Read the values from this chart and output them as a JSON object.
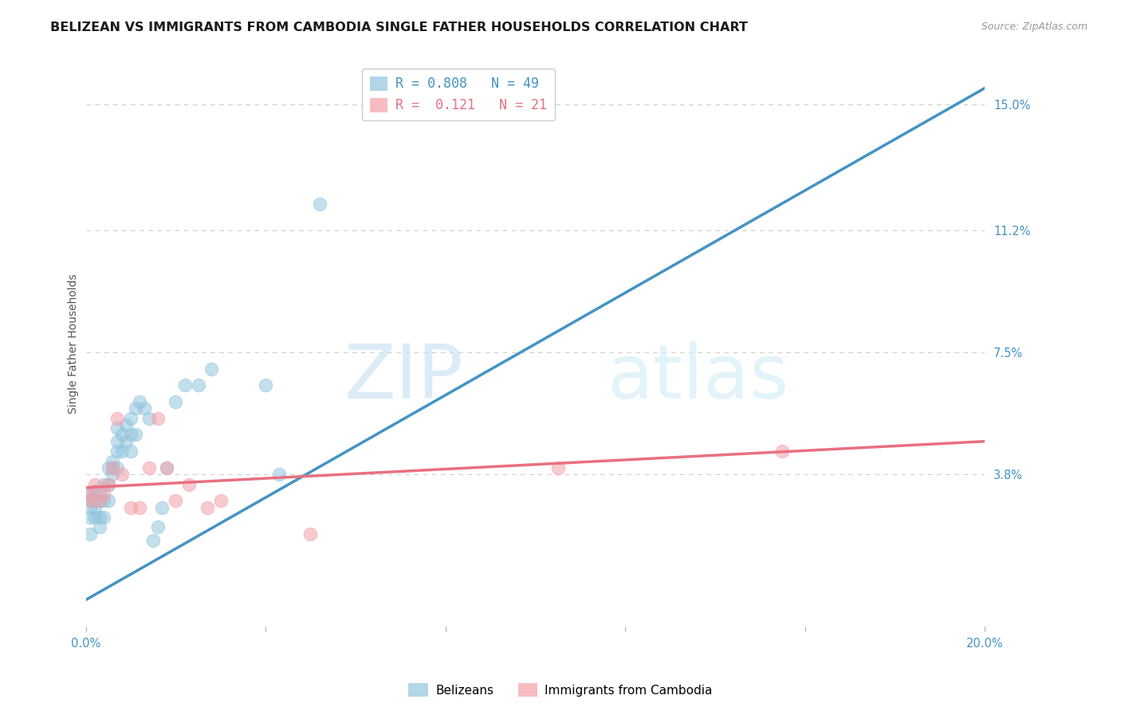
{
  "title": "BELIZEAN VS IMMIGRANTS FROM CAMBODIA SINGLE FATHER HOUSEHOLDS CORRELATION CHART",
  "source": "Source: ZipAtlas.com",
  "ylabel": "Single Father Households",
  "ylabel_right_ticks": [
    "15.0%",
    "11.2%",
    "7.5%",
    "3.8%"
  ],
  "ylabel_right_values": [
    0.15,
    0.112,
    0.075,
    0.038
  ],
  "xlim": [
    0.0,
    0.2
  ],
  "ylim": [
    -0.008,
    0.163
  ],
  "watermark_zip": "ZIP",
  "watermark_atlas": "atlas",
  "legend_blue_r": "0.808",
  "legend_blue_n": "49",
  "legend_pink_r": "0.121",
  "legend_pink_n": "21",
  "blue_color": "#92c5de",
  "pink_color": "#f4a0a8",
  "line_blue": "#4393c3",
  "line_pink": "#e87080",
  "belizeans_label": "Belizeans",
  "cambodia_label": "Immigrants from Cambodia",
  "blue_x": [
    0.001,
    0.001,
    0.001,
    0.001,
    0.001,
    0.002,
    0.002,
    0.002,
    0.002,
    0.003,
    0.003,
    0.003,
    0.003,
    0.004,
    0.004,
    0.004,
    0.005,
    0.005,
    0.005,
    0.006,
    0.006,
    0.006,
    0.007,
    0.007,
    0.007,
    0.007,
    0.008,
    0.008,
    0.009,
    0.009,
    0.01,
    0.01,
    0.01,
    0.011,
    0.011,
    0.012,
    0.013,
    0.014,
    0.015,
    0.016,
    0.017,
    0.018,
    0.02,
    0.022,
    0.025,
    0.028,
    0.04,
    0.043,
    0.052
  ],
  "blue_y": [
    0.02,
    0.025,
    0.028,
    0.03,
    0.032,
    0.025,
    0.028,
    0.03,
    0.033,
    0.022,
    0.025,
    0.03,
    0.032,
    0.025,
    0.03,
    0.035,
    0.03,
    0.035,
    0.04,
    0.038,
    0.04,
    0.042,
    0.04,
    0.045,
    0.048,
    0.052,
    0.045,
    0.05,
    0.048,
    0.053,
    0.045,
    0.05,
    0.055,
    0.05,
    0.058,
    0.06,
    0.058,
    0.055,
    0.018,
    0.022,
    0.028,
    0.04,
    0.06,
    0.065,
    0.065,
    0.07,
    0.065,
    0.038,
    0.12
  ],
  "pink_x": [
    0.001,
    0.001,
    0.002,
    0.003,
    0.004,
    0.005,
    0.006,
    0.007,
    0.008,
    0.01,
    0.012,
    0.014,
    0.016,
    0.018,
    0.02,
    0.023,
    0.027,
    0.03,
    0.05,
    0.105,
    0.155
  ],
  "pink_y": [
    0.03,
    0.032,
    0.035,
    0.03,
    0.032,
    0.035,
    0.04,
    0.055,
    0.038,
    0.028,
    0.028,
    0.04,
    0.055,
    0.04,
    0.03,
    0.035,
    0.028,
    0.03,
    0.02,
    0.04,
    0.045
  ],
  "blue_line_x": [
    0.0,
    0.2
  ],
  "blue_line_y": [
    0.0,
    0.155
  ],
  "pink_line_x": [
    0.0,
    0.2
  ],
  "pink_line_y": [
    0.034,
    0.048
  ],
  "grid_color": "#d0d0d0",
  "bg_color": "#ffffff",
  "title_fontsize": 11.5,
  "axis_label_fontsize": 10,
  "tick_fontsize": 10.5
}
